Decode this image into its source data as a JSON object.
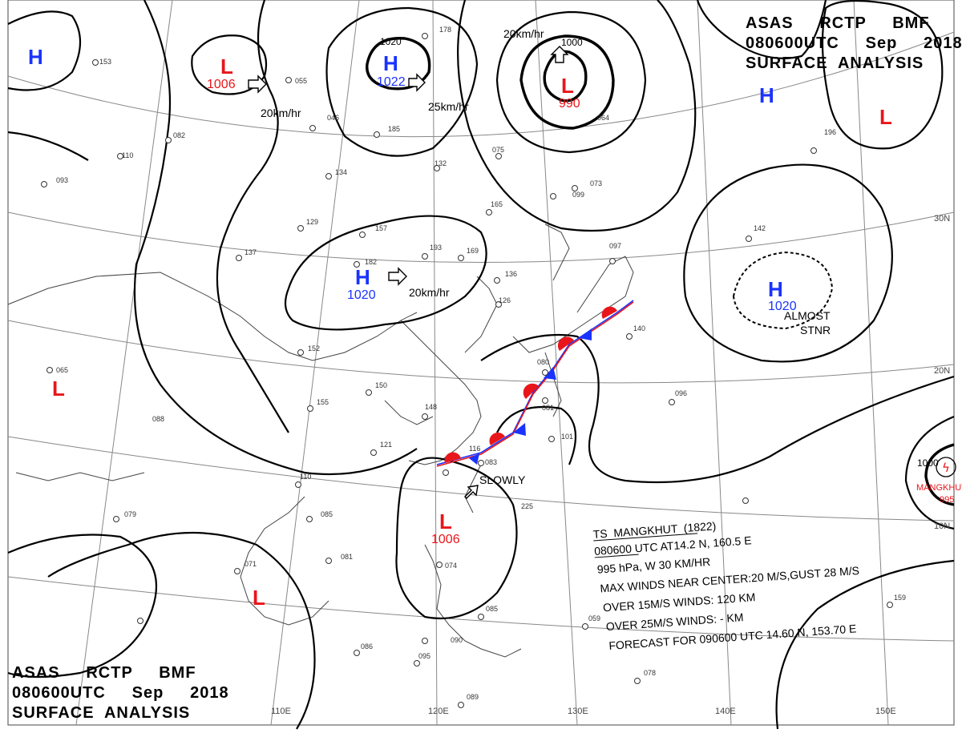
{
  "header_top": {
    "line1": "ASAS     RCTP     BMF",
    "line2": "080600UTC     Sep     2018",
    "line3": "SURFACE  ANALYSIS"
  },
  "header_bottom": {
    "line1": "ASAS     RCTP     BMF",
    "line2": "080600UTC     Sep     2018",
    "line3": "SURFACE  ANALYSIS"
  },
  "longitudes": [
    "110E",
    "120E",
    "130E",
    "140E",
    "150E"
  ],
  "latitudes": [
    "30N",
    "20N",
    "10N"
  ],
  "isobar_labels": [
    "1020",
    "1000",
    "1000"
  ],
  "pressure_centers": [
    {
      "type": "H",
      "value": ""
    },
    {
      "type": "L",
      "value": "1006"
    },
    {
      "type": "H",
      "value": "1022"
    },
    {
      "type": "L",
      "value": "990"
    },
    {
      "type": "H",
      "value": ""
    },
    {
      "type": "L",
      "value": ""
    },
    {
      "type": "H",
      "value": "1020"
    },
    {
      "type": "H",
      "value": "1020"
    },
    {
      "type": "L",
      "value": ""
    },
    {
      "type": "L",
      "value": "1006"
    },
    {
      "type": "L",
      "value": ""
    }
  ],
  "movements": [
    "20km/hr",
    "25km/hr",
    "20km/hr",
    "20km/hr",
    "SLOWLY",
    "ALMOST",
    "STNR"
  ],
  "typhoon_label": {
    "name": "MANGKHUT",
    "value": "995"
  },
  "ts_info": {
    "line1": "TS  MANGKHUT  (1822)",
    "line2": "080600 UTC  AT14.2 N, 160.5 E",
    "line3": "995 hPa, W  30 KM/HR",
    "line4": "MAX WINDS NEAR CENTER:20 M/S,GUST 28 M/S",
    "line5": "OVER 15M/S WINDS: 120 KM",
    "line6": "OVER 25M/S WINDS: - KM",
    "line7": "FORECAST FOR 090600 UTC 14.60 N, 153.70 E"
  },
  "stations": [
    "153",
    "055",
    "046",
    "178",
    "082",
    "185",
    "110",
    "132",
    "065",
    "093",
    "134",
    "129",
    "137",
    "157",
    "193",
    "182",
    "169",
    "165",
    "152",
    "150",
    "148",
    "155",
    "121",
    "110",
    "085",
    "079",
    "081",
    "071",
    "086",
    "095",
    "089",
    "090",
    "085",
    "074",
    "059",
    "075",
    "073",
    "099",
    "096",
    "140",
    "142",
    "196",
    "159",
    "078",
    "088",
    "064",
    "097",
    "080",
    "083",
    "081",
    "101",
    "136",
    "126",
    "116",
    "225"
  ]
}
